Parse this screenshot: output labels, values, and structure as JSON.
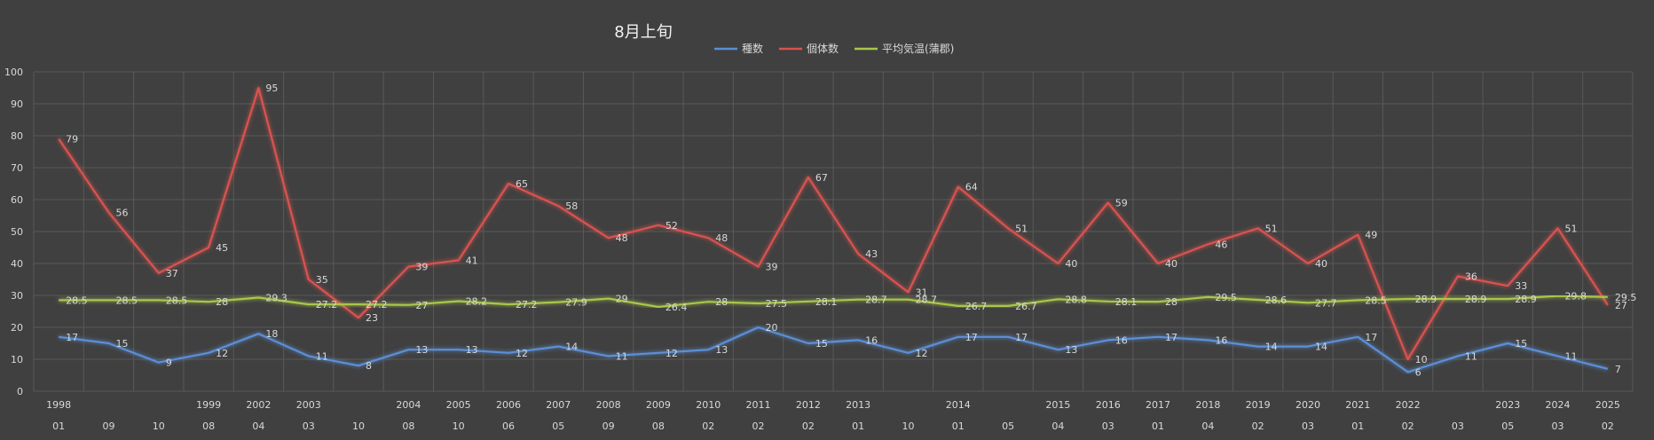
{
  "chart_data": {
    "type": "line",
    "title": "8月上旬",
    "ylim": [
      0,
      100
    ],
    "yticks": [
      0,
      10,
      20,
      30,
      40,
      50,
      60,
      70,
      80,
      90,
      100
    ],
    "grid": true,
    "legend_position": "top",
    "year_labels": [
      "1998",
      "",
      "",
      "1999",
      "2002",
      "2003",
      "",
      "2004",
      "2005",
      "2006",
      "2007",
      "2008",
      "2009",
      "2010",
      "2011",
      "2012",
      "2013",
      "",
      "2014",
      "",
      "2015",
      "2016",
      "2017",
      "2018",
      "2019",
      "2020",
      "2021",
      "2022",
      "",
      "2023",
      "2024",
      "2025"
    ],
    "day_labels": [
      "01",
      "09",
      "10",
      "08",
      "04",
      "03",
      "10",
      "08",
      "10",
      "06",
      "05",
      "09",
      "08",
      "02",
      "02",
      "02",
      "01",
      "10",
      "01",
      "05",
      "04",
      "03",
      "01",
      "04",
      "02",
      "03",
      "01",
      "02",
      "03",
      "05",
      "03",
      "02"
    ],
    "series": [
      {
        "name": "種数",
        "color": "#5b8fd6",
        "values": [
          17,
          15,
          9,
          12,
          18,
          11,
          8,
          13,
          13,
          12,
          14,
          11,
          12,
          13,
          20,
          15,
          16,
          12,
          17,
          17,
          13,
          16,
          17,
          16,
          14,
          14,
          17,
          6,
          11,
          15,
          11,
          7
        ]
      },
      {
        "name": "個体数",
        "color": "#d9534f",
        "values": [
          79,
          56,
          37,
          45,
          95,
          35,
          23,
          39,
          41,
          65,
          58,
          48,
          52,
          48,
          39,
          67,
          43,
          31,
          64,
          51,
          40,
          59,
          40,
          46,
          51,
          40,
          49,
          10,
          36,
          33,
          51,
          27
        ]
      },
      {
        "name": "平均気温(蒲郡)",
        "color": "#a9c64a",
        "values": [
          28.5,
          28.5,
          28.5,
          28,
          29.3,
          27.2,
          27.2,
          27,
          28.2,
          27.2,
          27.9,
          29,
          26.4,
          28,
          27.5,
          28.1,
          28.7,
          28.7,
          26.7,
          26.7,
          28.8,
          28.1,
          28,
          29.5,
          28.6,
          27.7,
          28.5,
          28.9,
          28.9,
          28.9,
          29.8,
          29.5
        ]
      }
    ]
  }
}
